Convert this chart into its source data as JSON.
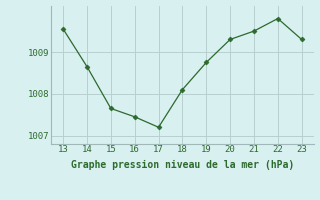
{
  "x": [
    13,
    14,
    15,
    16,
    17,
    18,
    19,
    20,
    21,
    22,
    23
  ],
  "y": [
    1009.55,
    1008.65,
    1007.65,
    1007.45,
    1007.2,
    1008.1,
    1008.75,
    1009.3,
    1009.5,
    1009.8,
    1009.3
  ],
  "line_color": "#2d6a2d",
  "marker": "D",
  "marker_size": 2.5,
  "bg_color": "#d8f0f0",
  "grid_color": "#b8d0d0",
  "xlabel": "Graphe pression niveau de la mer (hPa)",
  "xlabel_color": "#2d6a2d",
  "tick_color": "#2d6a2d",
  "ylim": [
    1006.8,
    1010.1
  ],
  "xlim": [
    12.5,
    23.5
  ],
  "yticks": [
    1007,
    1008,
    1009
  ],
  "xticks": [
    13,
    14,
    15,
    16,
    17,
    18,
    19,
    20,
    21,
    22,
    23
  ],
  "tick_fontsize": 6.5,
  "xlabel_fontsize": 7
}
